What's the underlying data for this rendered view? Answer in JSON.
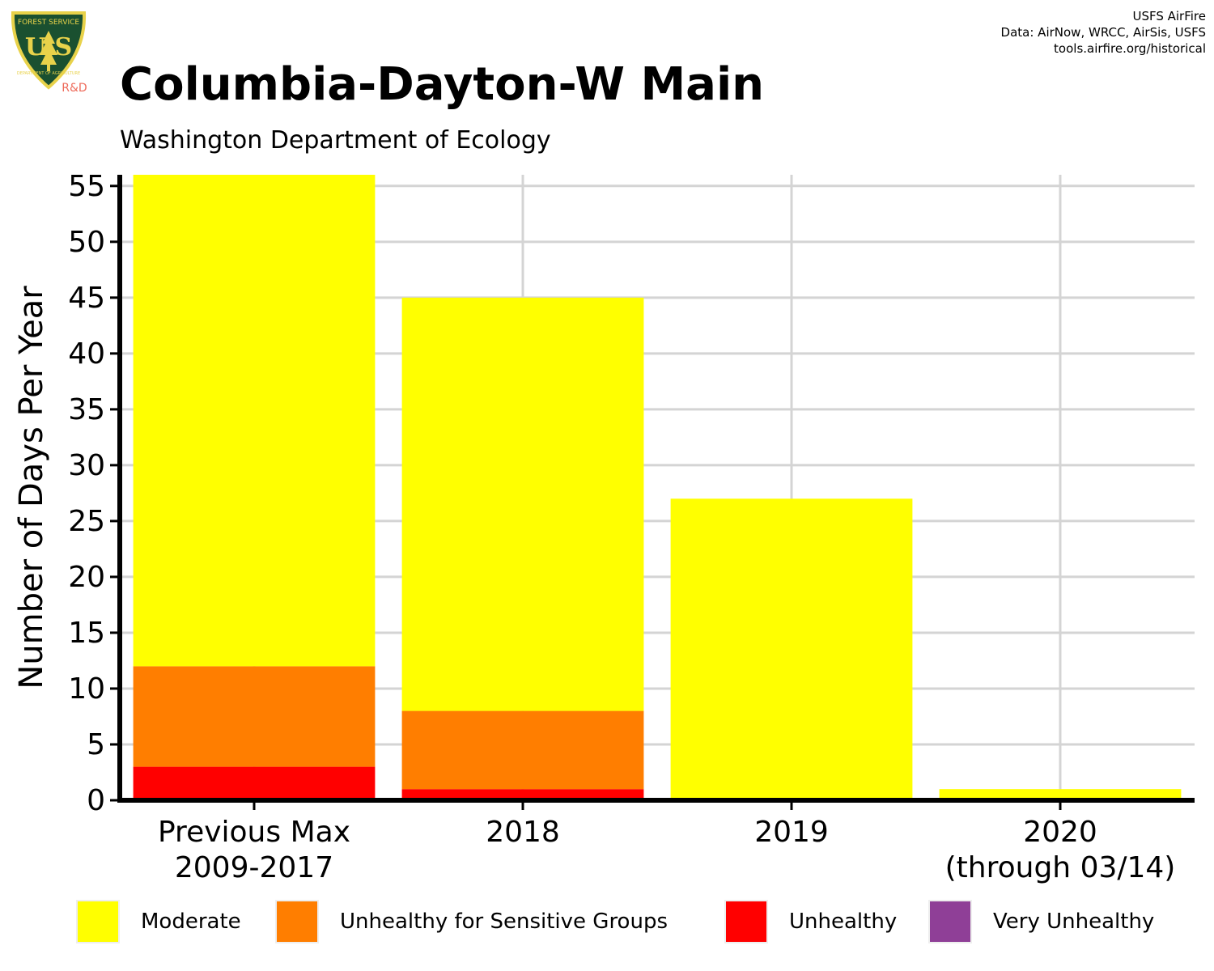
{
  "header": {
    "title": "Columbia-Dayton-W Main",
    "subtitle": "Washington Department of Ecology",
    "credits": [
      "USFS AirFire",
      "Data: AirNow, WRCC, AirSis, USFS",
      "tools.airfire.org/historical"
    ]
  },
  "logo": {
    "top_text": "FOREST SERVICE",
    "letters": "U S",
    "bottom_text": "DEPARTMENT OF AGRICULTURE",
    "badge": "R&D"
  },
  "colors": {
    "moderate": "#FFFF00",
    "usg": "#FF7E00",
    "unhealthy": "#FF0000",
    "very_unhealthy": "#8F3F97",
    "grid": "#d4d4d4",
    "axis": "#000000",
    "logo_green": "#1a5030",
    "logo_gold": "#e8d24a",
    "badge_red": "#ee6a5a"
  },
  "chart_data": {
    "type": "bar",
    "stacked": true,
    "ylabel": "Number of Days Per Year",
    "xlabel": "",
    "ylim": [
      0,
      56
    ],
    "yticks": [
      0,
      5,
      10,
      15,
      20,
      25,
      30,
      35,
      40,
      45,
      50,
      55
    ],
    "categories": [
      [
        "Previous Max",
        "2009-2017"
      ],
      [
        "2018"
      ],
      [
        "2019"
      ],
      [
        "2020",
        "(through 03/14)"
      ]
    ],
    "series": [
      {
        "name": "Moderate",
        "color_key": "moderate",
        "values": [
          44,
          37,
          27,
          1
        ]
      },
      {
        "name": "Unhealthy for Sensitive Groups",
        "color_key": "usg",
        "values": [
          9,
          7,
          0,
          0
        ]
      },
      {
        "name": "Unhealthy",
        "color_key": "unhealthy",
        "values": [
          3,
          1,
          0,
          0
        ]
      },
      {
        "name": "Very Unhealthy",
        "color_key": "very_unhealthy",
        "values": [
          0,
          0,
          0,
          0
        ]
      }
    ],
    "grid": true,
    "legend_position": "bottom"
  }
}
